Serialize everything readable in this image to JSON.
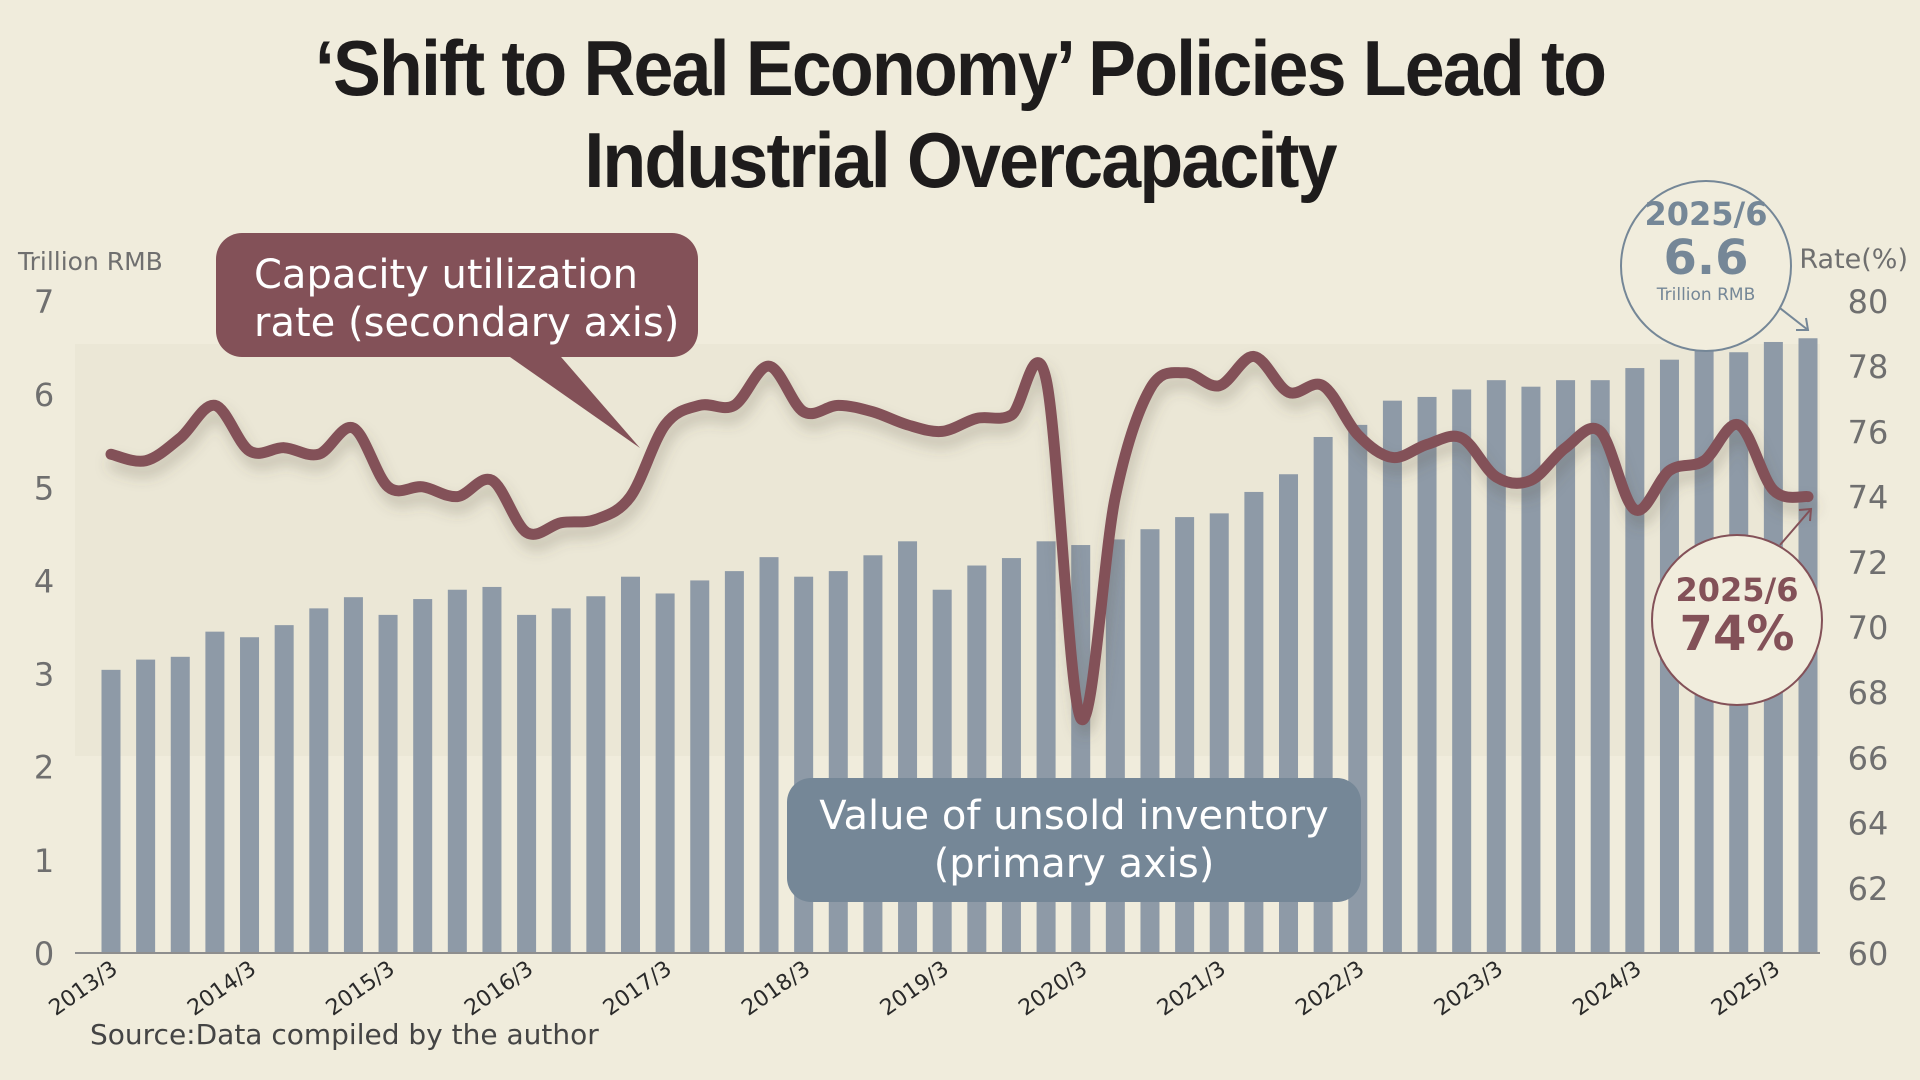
{
  "title": {
    "line1": "‘Shift to Real Economy’ Policies Lead to",
    "line2": "Industrial Overcapacity"
  },
  "source": "Source:Data compiled by the author",
  "callouts": {
    "rate_line1": "Capacity utilization",
    "rate_line2": "rate (secondary axis)",
    "inventory_line1": "Value of unsold inventory",
    "inventory_line2": "(primary axis)"
  },
  "annotations": {
    "inventory": {
      "date": "2025/6",
      "value": "6.6",
      "unit": "Trillion RMB"
    },
    "rate": {
      "date": "2025/6",
      "value": "74%"
    }
  },
  "colors": {
    "background": "#f0ecdc",
    "bars": "#8e9aa7",
    "line": "#835158",
    "inventory_accent": "#758797"
  },
  "chart_data": {
    "type": "bar+line",
    "title": "‘Shift to Real Economy’ Policies Lead to Industrial Overcapacity",
    "primary_axis": {
      "label": "Trillion RMB",
      "range": [
        0,
        7
      ],
      "ticks": [
        "0",
        "1",
        "2",
        "3",
        "4",
        "5",
        "6",
        "7"
      ]
    },
    "secondary_axis": {
      "label": "Rate(%)",
      "range": [
        60,
        80
      ],
      "ticks": [
        "60",
        "62",
        "64",
        "66",
        "68",
        "70",
        "72",
        "74",
        "76",
        "78",
        "80"
      ]
    },
    "x_tick_labels": [
      "2013/3",
      "2014/3",
      "2015/3",
      "2016/3",
      "2017/3",
      "2018/3",
      "2019/3",
      "2020/3",
      "2021/3",
      "2022/3",
      "2023/3",
      "2024/3",
      "2025/3"
    ],
    "x_tick_every": 4,
    "grid": false,
    "series": [
      {
        "name": "Value of unsold inventory (primary axis)",
        "type": "bar",
        "axis": "primary",
        "values": [
          3.04,
          3.15,
          3.18,
          3.45,
          3.39,
          3.52,
          3.7,
          3.82,
          3.63,
          3.8,
          3.9,
          3.93,
          3.63,
          3.7,
          3.83,
          4.04,
          3.86,
          4.0,
          4.1,
          4.25,
          4.04,
          4.1,
          4.27,
          4.42,
          3.9,
          4.16,
          4.24,
          4.42,
          4.38,
          4.44,
          4.55,
          4.68,
          4.72,
          4.95,
          5.14,
          5.54,
          5.67,
          5.93,
          5.97,
          6.05,
          6.15,
          6.08,
          6.15,
          6.15,
          6.28,
          6.37,
          6.47,
          6.45,
          6.56,
          6.6
        ]
      },
      {
        "name": "Capacity utilization rate (secondary axis)",
        "type": "line",
        "axis": "secondary",
        "values": [
          75.3,
          75.1,
          75.8,
          76.8,
          75.4,
          75.5,
          75.3,
          76.1,
          74.3,
          74.3,
          74.0,
          74.5,
          72.9,
          73.2,
          73.3,
          74.0,
          76.2,
          76.8,
          76.8,
          78.0,
          76.6,
          76.8,
          76.6,
          76.2,
          76.0,
          76.4,
          76.5,
          77.6,
          67.2,
          74.0,
          77.3,
          77.8,
          77.4,
          78.3,
          77.2,
          77.4,
          75.9,
          75.2,
          75.6,
          75.8,
          74.6,
          74.5,
          75.5,
          76.0,
          73.6,
          74.8,
          75.1,
          76.2,
          74.2,
          74.0
        ]
      }
    ],
    "last_point_annotations": [
      "2025/6: 6.6 Trillion RMB",
      "2025/6: 74%"
    ]
  }
}
